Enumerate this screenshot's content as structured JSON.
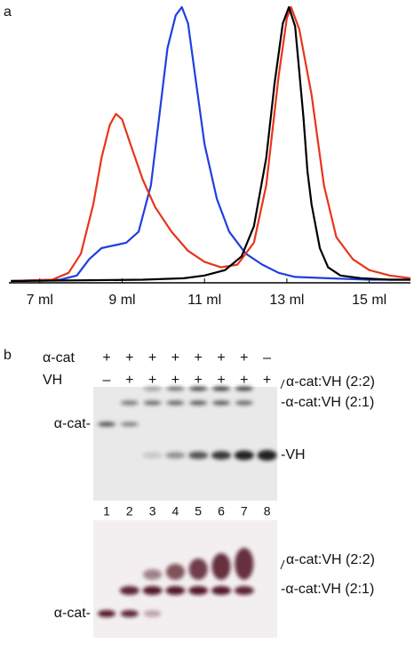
{
  "chart_data": {
    "type": "line",
    "panel_label": "a",
    "xlim": [
      6.25,
      16
    ],
    "ylim": [
      0,
      100
    ],
    "xticks": [
      {
        "value": 7,
        "label": "7 ml"
      },
      {
        "value": 9,
        "label": "9 ml"
      },
      {
        "value": 11,
        "label": "11 ml"
      },
      {
        "value": 13,
        "label": "13 ml"
      },
      {
        "value": 15,
        "label": "15 ml"
      }
    ],
    "series": [
      {
        "color": "#e8341c",
        "x": [
          6.3,
          7.3,
          7.7,
          8.0,
          8.3,
          8.5,
          8.7,
          8.85,
          9.0,
          9.2,
          9.5,
          9.8,
          10.2,
          10.6,
          11.0,
          11.4,
          11.8,
          12.2,
          12.5,
          12.8,
          13.0,
          13.1,
          13.3,
          13.6,
          13.9,
          14.2,
          14.6,
          15.0,
          15.5,
          16.0
        ],
        "values": [
          0,
          0.5,
          3,
          10,
          28,
          45,
          57,
          61,
          59,
          50,
          37,
          27,
          18,
          11,
          7,
          5,
          6,
          14,
          35,
          75,
          96,
          100,
          92,
          68,
          35,
          16,
          8,
          4,
          2,
          1
        ]
      },
      {
        "color": "#1f3fe0",
        "x": [
          6.3,
          7.5,
          7.9,
          8.2,
          8.5,
          8.8,
          9.1,
          9.4,
          9.7,
          9.9,
          10.1,
          10.3,
          10.45,
          10.6,
          10.8,
          11.0,
          11.3,
          11.6,
          12.0,
          12.4,
          12.8,
          13.2,
          14,
          15,
          16
        ],
        "values": [
          0,
          0.5,
          2,
          8,
          12,
          13,
          14,
          18,
          35,
          60,
          85,
          97,
          100,
          94,
          72,
          50,
          30,
          18,
          10,
          6,
          3,
          1.5,
          1,
          0.5,
          0.5
        ]
      },
      {
        "color": "#000000",
        "x": [
          6.3,
          9.5,
          10.5,
          11.0,
          11.5,
          11.9,
          12.2,
          12.5,
          12.7,
          12.9,
          13.05,
          13.2,
          13.4,
          13.5,
          13.6,
          13.8,
          14.0,
          14.3,
          14.8,
          15.5,
          16
        ],
        "values": [
          0,
          0.5,
          1,
          2,
          4,
          9,
          20,
          45,
          72,
          94,
          100,
          93,
          60,
          40,
          28,
          12,
          5,
          2,
          1,
          0.5,
          0.5
        ]
      }
    ]
  },
  "gel": {
    "panel_label": "b",
    "rows": [
      {
        "name": "α-cat",
        "signs": [
          "+",
          "+",
          "+",
          "+",
          "+",
          "+",
          "+",
          "–"
        ]
      },
      {
        "name": "VH",
        "signs": [
          "–",
          "+",
          "+",
          "+",
          "+",
          "+",
          "+",
          "+"
        ]
      }
    ],
    "lanes": [
      "1",
      "2",
      "3",
      "4",
      "5",
      "6",
      "7",
      "8"
    ],
    "blot1": {
      "left": "α-cat-",
      "right": [
        "α-cat:VH (2:2)",
        "-α-cat:VH (2:1)",
        "-VH"
      ]
    },
    "blot2": {
      "left": "α-cat-",
      "right": [
        "α-cat:VH (2:2)",
        "-α-cat:VH (2:1)"
      ]
    }
  }
}
